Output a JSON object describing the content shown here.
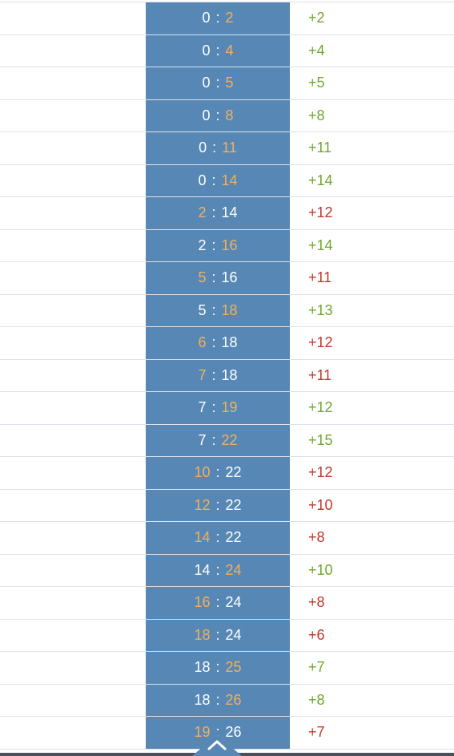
{
  "colors": {
    "score_bg": "#5788b5",
    "score_text": "#ffffff",
    "score_highlight": "#f3b05a",
    "lead_up": "#6ea82b",
    "lead_down": "#c0392b",
    "row_divider": "#dfe2ea"
  },
  "score_separator": ":",
  "rows": [
    {
      "home": "0",
      "away": "2",
      "scorer": "away",
      "diff": "+2",
      "trend": "up"
    },
    {
      "home": "0",
      "away": "4",
      "scorer": "away",
      "diff": "+4",
      "trend": "up"
    },
    {
      "home": "0",
      "away": "5",
      "scorer": "away",
      "diff": "+5",
      "trend": "up"
    },
    {
      "home": "0",
      "away": "8",
      "scorer": "away",
      "diff": "+8",
      "trend": "up"
    },
    {
      "home": "0",
      "away": "11",
      "scorer": "away",
      "diff": "+11",
      "trend": "up"
    },
    {
      "home": "0",
      "away": "14",
      "scorer": "away",
      "diff": "+14",
      "trend": "up"
    },
    {
      "home": "2",
      "away": "14",
      "scorer": "home",
      "diff": "+12",
      "trend": "down"
    },
    {
      "home": "2",
      "away": "16",
      "scorer": "away",
      "diff": "+14",
      "trend": "up"
    },
    {
      "home": "5",
      "away": "16",
      "scorer": "home",
      "diff": "+11",
      "trend": "down"
    },
    {
      "home": "5",
      "away": "18",
      "scorer": "away",
      "diff": "+13",
      "trend": "up"
    },
    {
      "home": "6",
      "away": "18",
      "scorer": "home",
      "diff": "+12",
      "trend": "down"
    },
    {
      "home": "7",
      "away": "18",
      "scorer": "home",
      "diff": "+11",
      "trend": "down"
    },
    {
      "home": "7",
      "away": "19",
      "scorer": "away",
      "diff": "+12",
      "trend": "up"
    },
    {
      "home": "7",
      "away": "22",
      "scorer": "away",
      "diff": "+15",
      "trend": "up"
    },
    {
      "home": "10",
      "away": "22",
      "scorer": "home",
      "diff": "+12",
      "trend": "down"
    },
    {
      "home": "12",
      "away": "22",
      "scorer": "home",
      "diff": "+10",
      "trend": "down"
    },
    {
      "home": "14",
      "away": "22",
      "scorer": "home",
      "diff": "+8",
      "trend": "down"
    },
    {
      "home": "14",
      "away": "24",
      "scorer": "away",
      "diff": "+10",
      "trend": "up"
    },
    {
      "home": "16",
      "away": "24",
      "scorer": "home",
      "diff": "+8",
      "trend": "down"
    },
    {
      "home": "18",
      "away": "24",
      "scorer": "home",
      "diff": "+6",
      "trend": "down"
    },
    {
      "home": "18",
      "away": "25",
      "scorer": "away",
      "diff": "+7",
      "trend": "up"
    },
    {
      "home": "18",
      "away": "26",
      "scorer": "away",
      "diff": "+8",
      "trend": "up"
    },
    {
      "home": "19",
      "away": "26",
      "scorer": "home",
      "diff": "+7",
      "trend": "down"
    }
  ],
  "scroll_button": {
    "icon": "chevron-up-icon"
  }
}
